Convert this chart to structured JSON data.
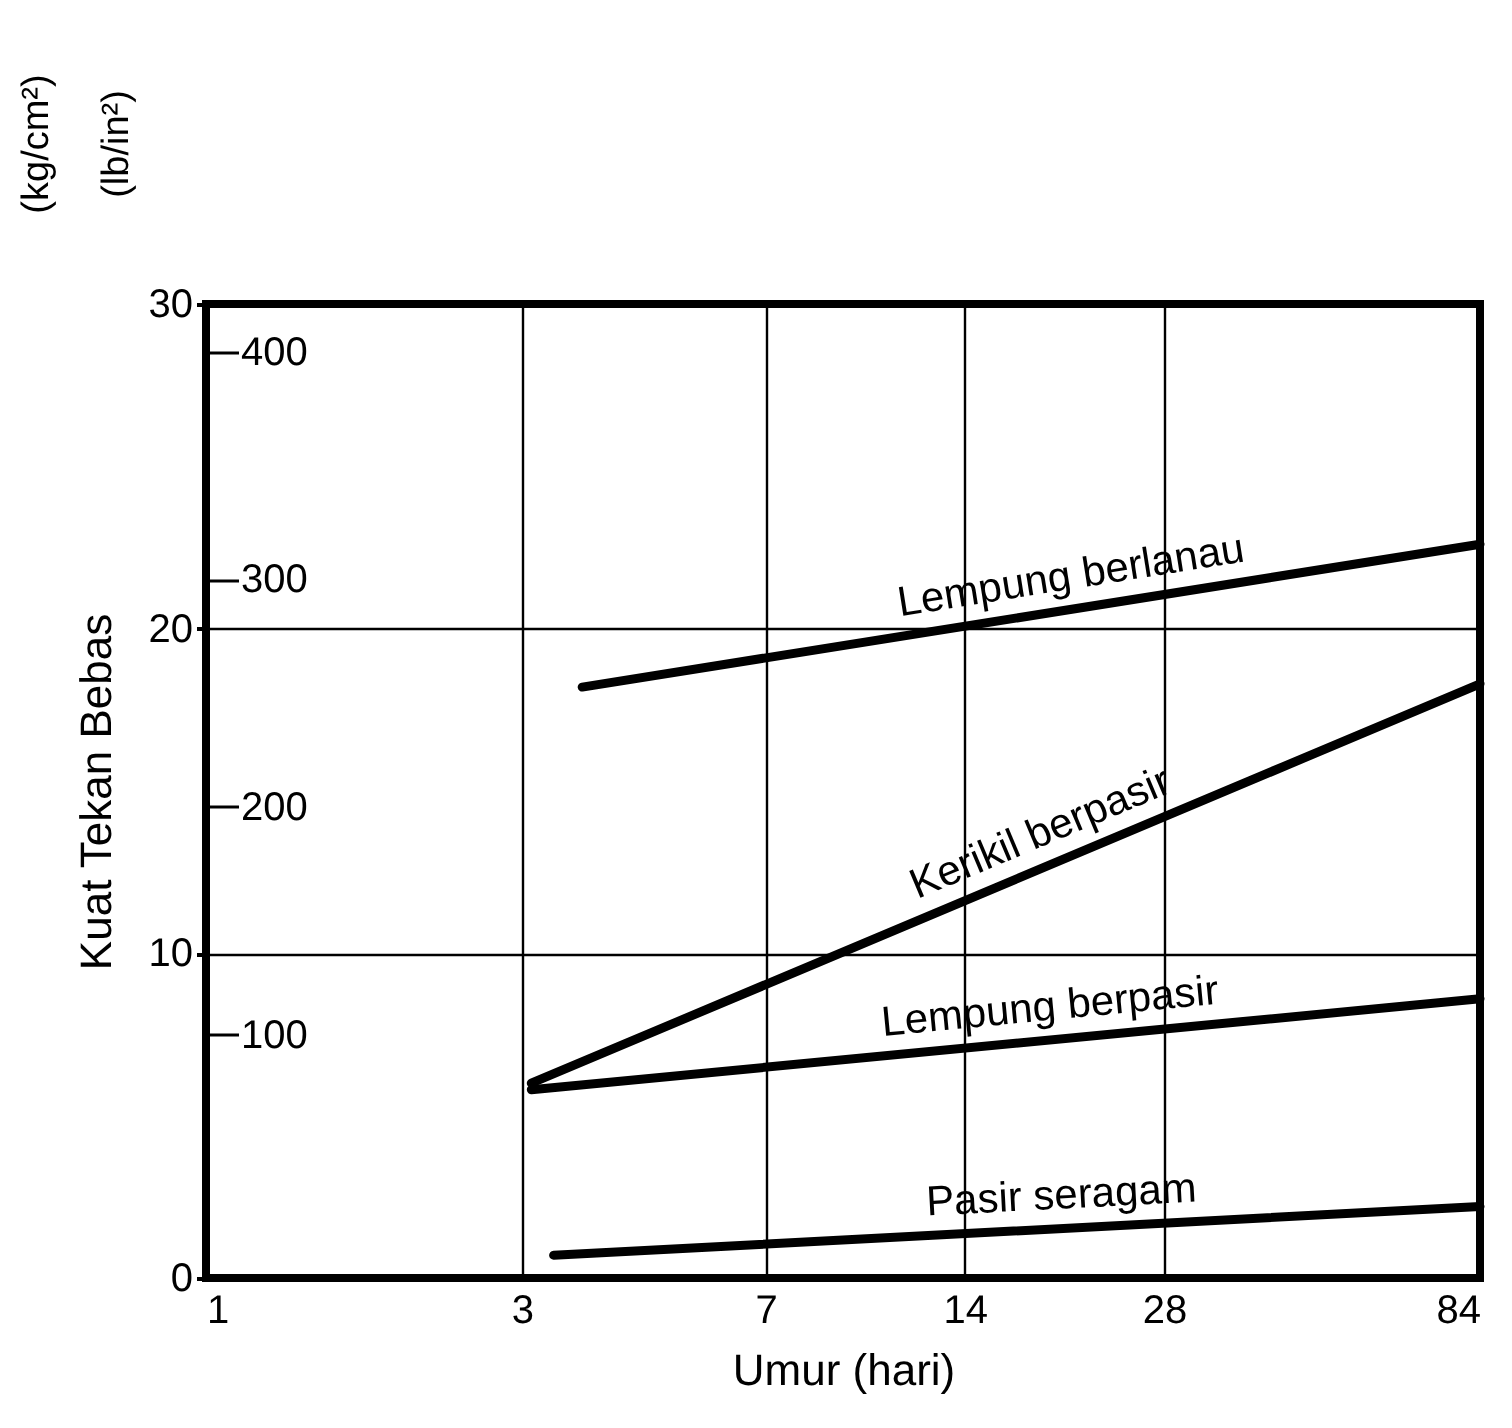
{
  "chart_data": {
    "type": "line",
    "xlabel": "Umur (hari)",
    "ylabel": "Kuat Tekan Bebas",
    "annotations": [
      "(kg/cm²)",
      "(lb/in²)"
    ],
    "log": "x",
    "xlim": [
      1,
      84
    ],
    "xticks": [
      1,
      3,
      7,
      14,
      28,
      84
    ],
    "ylim": [
      0,
      30
    ],
    "yticks": [
      0,
      10,
      20,
      30
    ],
    "y2lim": [
      -7,
      421
    ],
    "y2ticks": [
      100,
      200,
      300,
      400
    ],
    "grid": true,
    "series": [
      {
        "name": "Lempung berlanau",
        "color": "#000000",
        "x": [
          3.7,
          84
        ],
        "values": [
          18.2,
          22.6
        ]
      },
      {
        "name": "Kerikil berpasir",
        "color": "#000000",
        "x": [
          3.1,
          84
        ],
        "values": [
          6.0,
          18.3
        ]
      },
      {
        "name": "Lempung berpasir",
        "color": "#000000",
        "x": [
          3.1,
          84
        ],
        "values": [
          5.8,
          8.6
        ]
      },
      {
        "name": "Pasir seragam",
        "color": "#000000",
        "x": [
          3.35,
          84
        ],
        "values": [
          0.7,
          2.2
        ]
      }
    ]
  }
}
